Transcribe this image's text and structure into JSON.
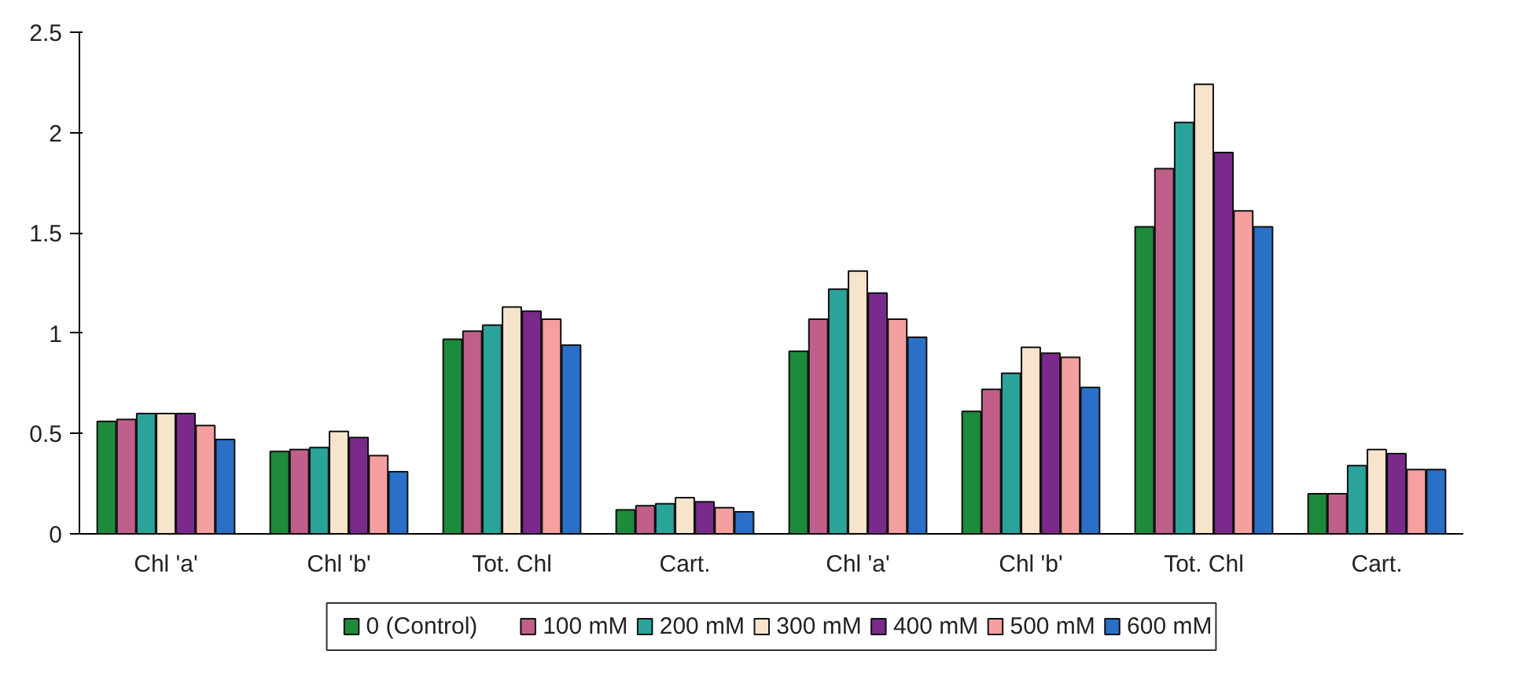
{
  "chart_data": {
    "type": "bar",
    "categories": [
      "Chl 'a'",
      "Chl 'b'",
      "Tot. Chl",
      "Cart.",
      "Chl 'a'",
      "Chl 'b'",
      "Tot. Chl",
      "Cart."
    ],
    "series": [
      {
        "name": "0 (Control)",
        "color": "#1e8a3c",
        "values": [
          0.56,
          0.41,
          0.97,
          0.12,
          0.91,
          0.61,
          1.53,
          0.2
        ]
      },
      {
        "name": "100 mM",
        "color": "#c0608a",
        "values": [
          0.57,
          0.42,
          1.01,
          0.14,
          1.07,
          0.72,
          1.82,
          0.2
        ]
      },
      {
        "name": "200 mM",
        "color": "#2aa39a",
        "values": [
          0.6,
          0.43,
          1.04,
          0.15,
          1.22,
          0.8,
          2.05,
          0.34
        ]
      },
      {
        "name": "300 mM",
        "color": "#f6e4cc",
        "values": [
          0.6,
          0.51,
          1.13,
          0.18,
          1.31,
          0.93,
          2.24,
          0.42
        ]
      },
      {
        "name": "400 mM",
        "color": "#7a2a8a",
        "values": [
          0.6,
          0.48,
          1.11,
          0.16,
          1.2,
          0.9,
          1.9,
          0.4
        ]
      },
      {
        "name": "500 mM",
        "color": "#f4a0a0",
        "values": [
          0.54,
          0.39,
          1.07,
          0.13,
          1.07,
          0.88,
          1.61,
          0.32
        ]
      },
      {
        "name": "600 mM",
        "color": "#2a70c8",
        "values": [
          0.47,
          0.31,
          0.94,
          0.11,
          0.98,
          0.73,
          1.53,
          0.32
        ]
      }
    ],
    "ylim": [
      0,
      2.5
    ],
    "yticks": [
      0,
      0.5,
      1,
      1.5,
      2,
      2.5
    ],
    "grid": false,
    "legend": "bottom"
  }
}
